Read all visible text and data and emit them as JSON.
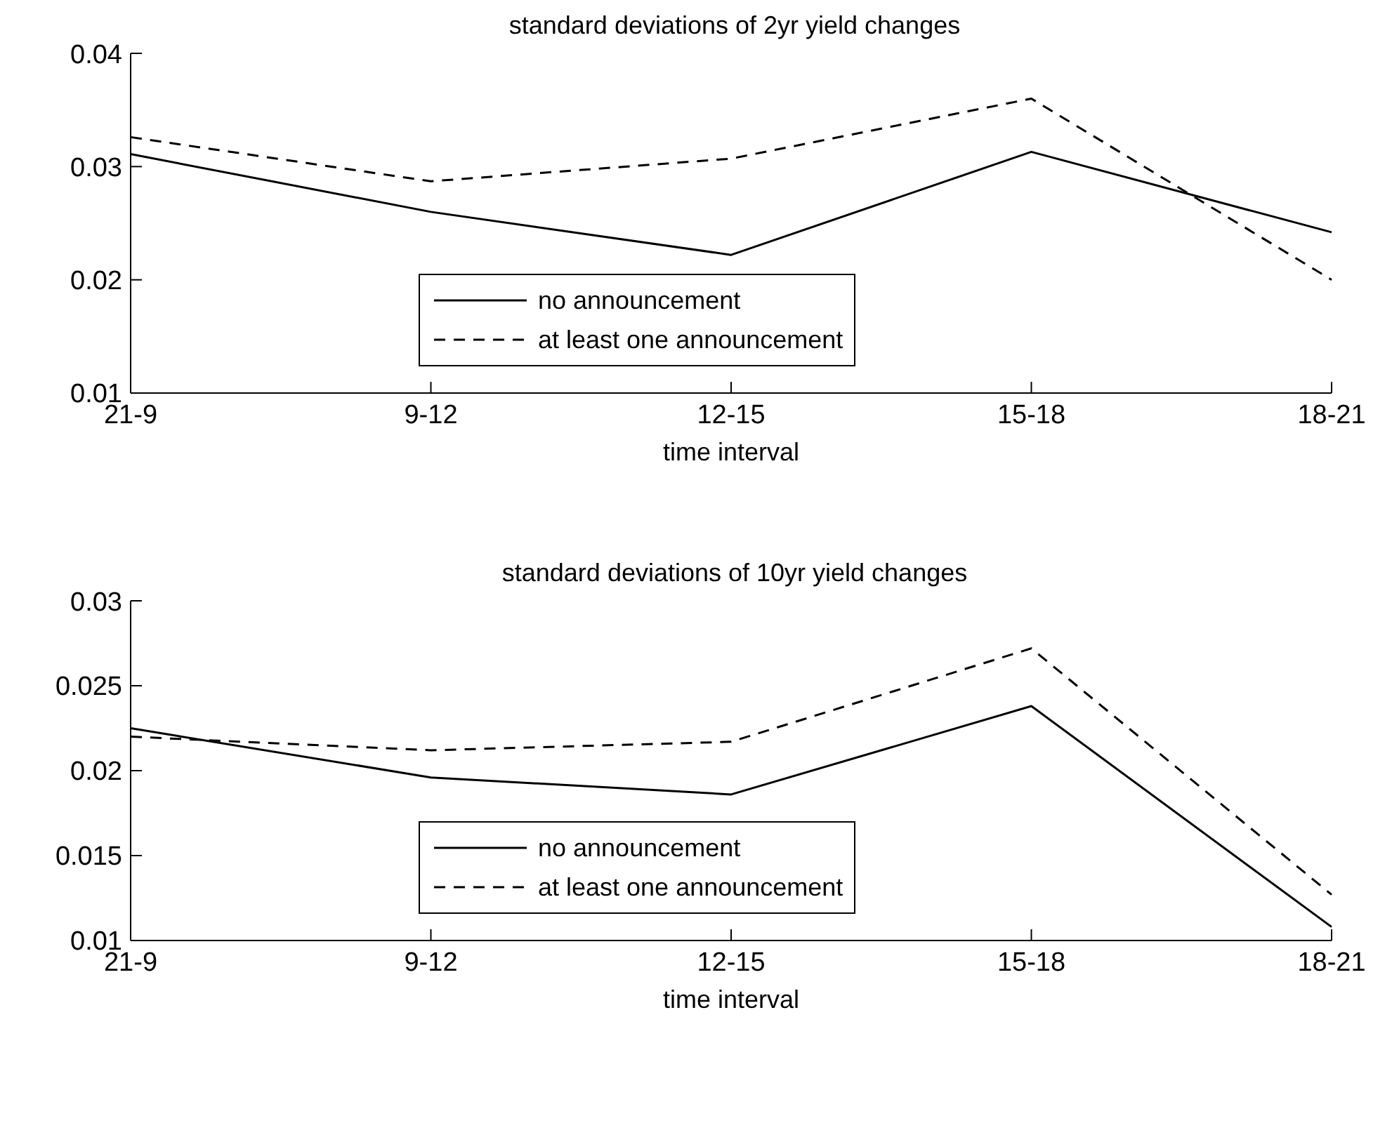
{
  "chart_data": [
    {
      "type": "line",
      "title": "standard deviations of 2yr yield changes",
      "xlabel": "time interval",
      "categories": [
        "21-9",
        "9-12",
        "12-15",
        "15-18",
        "18-21"
      ],
      "ylim": [
        0.01,
        0.04
      ],
      "yticks": [
        0.01,
        0.02,
        0.03,
        0.04
      ],
      "grid": false,
      "legend": "bottom",
      "series": [
        {
          "name": "no announcement",
          "color": "#000000",
          "line_style": "solid",
          "values": [
            0.0311,
            0.026,
            0.0222,
            0.0313,
            0.0242
          ]
        },
        {
          "name": "at least one announcement",
          "color": "#000000",
          "line_style": "dashed",
          "values": [
            0.0326,
            0.0287,
            0.0307,
            0.036,
            0.02
          ]
        }
      ]
    },
    {
      "type": "line",
      "title": "standard deviations of 10yr yield changes",
      "xlabel": "time interval",
      "categories": [
        "21-9",
        "9-12",
        "12-15",
        "15-18",
        "18-21"
      ],
      "ylim": [
        0.01,
        0.03
      ],
      "yticks": [
        0.01,
        0.015,
        0.02,
        0.025,
        0.03
      ],
      "grid": false,
      "legend": "bottom",
      "series": [
        {
          "name": "no announcement",
          "color": "#000000",
          "line_style": "solid",
          "values": [
            0.0225,
            0.0196,
            0.0186,
            0.0238,
            0.0108
          ]
        },
        {
          "name": "at least one announcement",
          "color": "#000000",
          "line_style": "dashed",
          "values": [
            0.022,
            0.0212,
            0.0217,
            0.0272,
            0.0127
          ]
        }
      ]
    }
  ]
}
